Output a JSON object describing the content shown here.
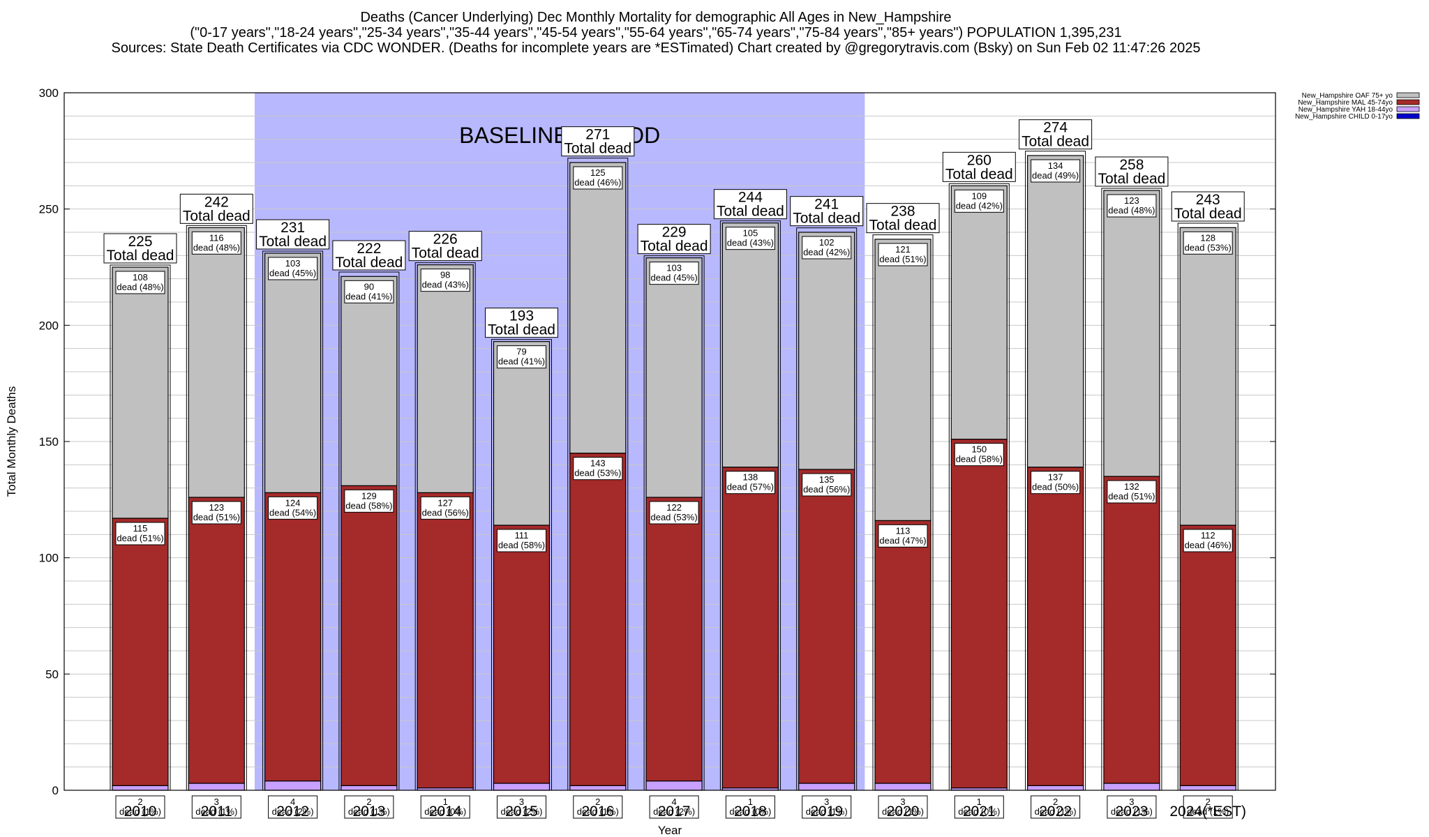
{
  "header": {
    "title_line1": "Deaths (Cancer Underlying) Dec Monthly Mortality for demographic All Ages in New_Hampshire",
    "title_line2": "(\"0-17 years\",\"18-24 years\",\"25-34 years\",\"35-44 years\",\"45-54 years\",\"55-64 years\",\"65-74 years\",\"75-84 years\",\"85+ years\") POPULATION 1,395,231",
    "title_line3": "Sources: State Death Certificates via CDC WONDER. (Deaths for incomplete years are *ESTimated)                 Chart created by @gregorytravis.com (Bsky) on Sun Feb 02 11:47:26 2025"
  },
  "chart_data": {
    "type": "bar",
    "stacked": true,
    "xlabel": "Year",
    "ylabel": "Total Monthly Deaths",
    "ylim": [
      0,
      300
    ],
    "yticks": [
      0,
      50,
      100,
      150,
      200,
      250,
      300
    ],
    "grid": true,
    "legend_position": "top-right",
    "categories": [
      "2010",
      "2011",
      "2012",
      "2013",
      "2014",
      "2015",
      "2016",
      "2017",
      "2018",
      "2019",
      "2020",
      "2021",
      "2022",
      "2023",
      "2024(*EST)"
    ],
    "totals": [
      225,
      242,
      231,
      222,
      226,
      193,
      271,
      229,
      244,
      241,
      238,
      260,
      274,
      258,
      243
    ],
    "total_label": "Total dead",
    "baseline": {
      "label": "BASELINE PERIOD",
      "from": "2012",
      "to": "2019",
      "color": "#b8b8ff"
    },
    "series": [
      {
        "name": "New_Hampshire CHILD 0-17yo",
        "color": "#0000cc",
        "values": [
          0,
          0,
          0,
          0,
          0,
          0,
          0,
          0,
          0,
          0,
          0,
          0,
          0,
          0,
          0
        ]
      },
      {
        "name": "New_Hampshire YAH 18-44yo",
        "color": "#c8a0ff",
        "values": [
          2,
          3,
          4,
          2,
          1,
          3,
          2,
          4,
          1,
          3,
          3,
          1,
          2,
          3,
          2
        ],
        "pct": [
          "1%",
          "1%",
          "2%",
          "1%",
          "0%",
          "2%",
          "1%",
          "2%",
          "0%",
          "1%",
          "1%",
          "0%",
          "1%",
          "1%",
          "1%"
        ]
      },
      {
        "name": "New_Hampshire MAL 45-74yo",
        "color": "#a52a2a",
        "values": [
          115,
          123,
          124,
          129,
          127,
          111,
          143,
          122,
          138,
          135,
          113,
          150,
          137,
          132,
          112
        ],
        "pct": [
          "51%",
          "51%",
          "54%",
          "58%",
          "56%",
          "58%",
          "53%",
          "53%",
          "57%",
          "56%",
          "47%",
          "58%",
          "50%",
          "51%",
          "46%"
        ]
      },
      {
        "name": "New_Hampshire OAF 75+ yo",
        "color": "#c0c0c0",
        "values": [
          108,
          116,
          103,
          90,
          98,
          79,
          125,
          103,
          105,
          102,
          121,
          109,
          134,
          123,
          128
        ],
        "pct": [
          "48%",
          "48%",
          "45%",
          "41%",
          "43%",
          "41%",
          "46%",
          "45%",
          "43%",
          "42%",
          "51%",
          "42%",
          "49%",
          "48%",
          "53%"
        ]
      }
    ],
    "segment_word": "dead",
    "legend_order": [
      "New_Hampshire OAF 75+ yo",
      "New_Hampshire MAL 45-74yo",
      "New_Hampshire YAH 18-44yo",
      "New_Hampshire CHILD 0-17yo"
    ]
  }
}
